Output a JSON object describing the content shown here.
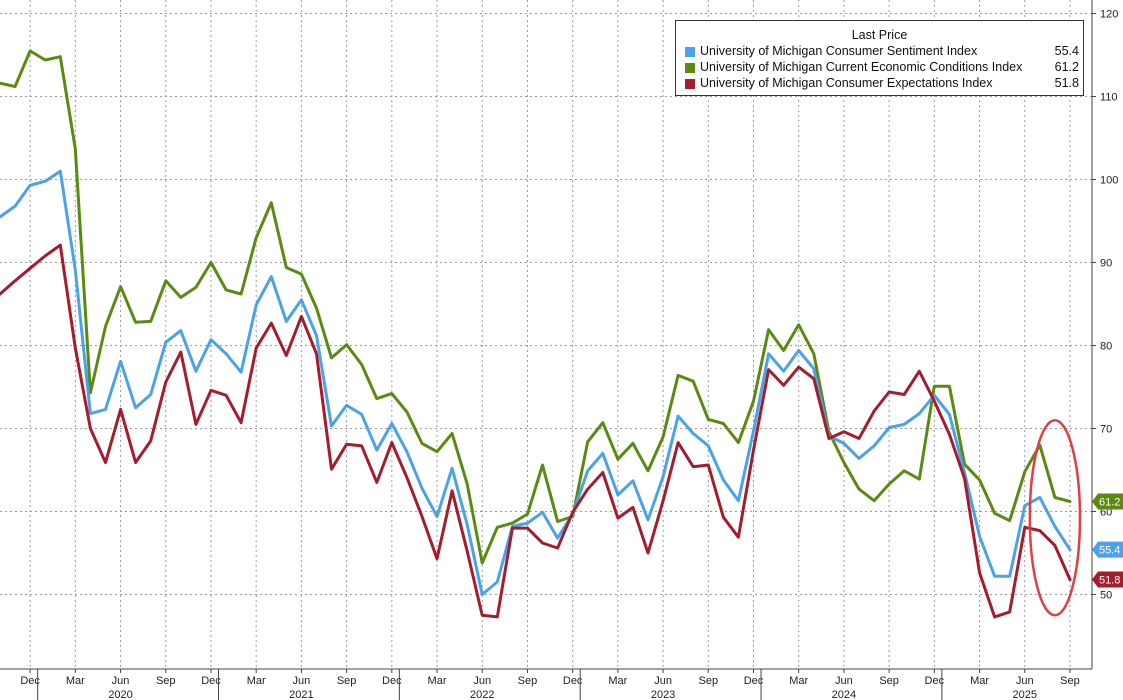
{
  "chart_data": {
    "type": "line",
    "title": "",
    "xlabel": "",
    "ylabel": "",
    "ylim": [
      42,
      121
    ],
    "y_ticks": [
      50,
      60,
      70,
      80,
      90,
      100,
      110,
      120
    ],
    "grid": true,
    "legend": {
      "title": "Last Price",
      "placement": "top-right"
    },
    "x_month_labels": [
      {
        "date": "2019-12",
        "label": "Dec"
      },
      {
        "date": "2020-03",
        "label": "Mar"
      },
      {
        "date": "2020-06",
        "label": "Jun"
      },
      {
        "date": "2020-09",
        "label": "Sep"
      },
      {
        "date": "2020-12",
        "label": "Dec"
      },
      {
        "date": "2021-03",
        "label": "Mar"
      },
      {
        "date": "2021-06",
        "label": "Jun"
      },
      {
        "date": "2021-09",
        "label": "Sep"
      },
      {
        "date": "2021-12",
        "label": "Dec"
      },
      {
        "date": "2022-03",
        "label": "Mar"
      },
      {
        "date": "2022-06",
        "label": "Jun"
      },
      {
        "date": "2022-09",
        "label": "Sep"
      },
      {
        "date": "2022-12",
        "label": "Dec"
      },
      {
        "date": "2023-03",
        "label": "Mar"
      },
      {
        "date": "2023-06",
        "label": "Jun"
      },
      {
        "date": "2023-09",
        "label": "Sep"
      },
      {
        "date": "2023-12",
        "label": "Dec"
      },
      {
        "date": "2024-03",
        "label": "Mar"
      },
      {
        "date": "2024-06",
        "label": "Jun"
      },
      {
        "date": "2024-09",
        "label": "Sep"
      },
      {
        "date": "2024-12",
        "label": "Dec"
      },
      {
        "date": "2025-03",
        "label": "Mar"
      },
      {
        "date": "2025-06",
        "label": "Jun"
      },
      {
        "date": "2025-09",
        "label": "Sep"
      }
    ],
    "x_year_labels": [
      {
        "date": "2020-06",
        "label": "2020"
      },
      {
        "date": "2021-06",
        "label": "2021"
      },
      {
        "date": "2022-06",
        "label": "2022"
      },
      {
        "date": "2023-06",
        "label": "2023"
      },
      {
        "date": "2024-06",
        "label": "2024"
      },
      {
        "date": "2025-06",
        "label": "2025"
      }
    ],
    "x": [
      "2019-10",
      "2019-11",
      "2019-12",
      "2020-01",
      "2020-02",
      "2020-03",
      "2020-04",
      "2020-05",
      "2020-06",
      "2020-07",
      "2020-08",
      "2020-09",
      "2020-10",
      "2020-11",
      "2020-12",
      "2021-01",
      "2021-02",
      "2021-03",
      "2021-04",
      "2021-05",
      "2021-06",
      "2021-07",
      "2021-08",
      "2021-09",
      "2021-10",
      "2021-11",
      "2021-12",
      "2022-01",
      "2022-02",
      "2022-03",
      "2022-04",
      "2022-05",
      "2022-06",
      "2022-07",
      "2022-08",
      "2022-09",
      "2022-10",
      "2022-11",
      "2022-12",
      "2023-01",
      "2023-02",
      "2023-03",
      "2023-04",
      "2023-05",
      "2023-06",
      "2023-07",
      "2023-08",
      "2023-09",
      "2023-10",
      "2023-11",
      "2023-12",
      "2024-01",
      "2024-02",
      "2024-03",
      "2024-04",
      "2024-05",
      "2024-06",
      "2024-07",
      "2024-08",
      "2024-09",
      "2024-10",
      "2024-11",
      "2024-12",
      "2025-01",
      "2025-02",
      "2025-03",
      "2025-04",
      "2025-05",
      "2025-06",
      "2025-07",
      "2025-08",
      "2025-09"
    ],
    "series": [
      {
        "name": "University of Michigan Consumer Sentiment Index",
        "last": "55.4",
        "end_tag": "55.4",
        "color": "#4aa3e8",
        "values": [
          95.5,
          96.8,
          99.3,
          99.8,
          101.0,
          89.1,
          71.8,
          72.3,
          78.1,
          72.5,
          74.1,
          80.4,
          81.8,
          76.9,
          80.7,
          79.0,
          76.8,
          84.9,
          88.3,
          82.9,
          85.5,
          81.2,
          70.3,
          72.8,
          71.7,
          67.4,
          70.6,
          67.2,
          62.8,
          59.4,
          65.2,
          58.4,
          50.0,
          51.5,
          58.2,
          58.6,
          59.9,
          56.8,
          59.7,
          64.9,
          67.0,
          62.0,
          63.7,
          59.0,
          64.2,
          71.5,
          69.4,
          67.9,
          63.8,
          61.3,
          69.7,
          79.0,
          76.9,
          79.4,
          77.2,
          69.1,
          68.2,
          66.4,
          67.9,
          70.1,
          70.5,
          71.8,
          74.0,
          71.7,
          64.7,
          57.0,
          52.2,
          52.2,
          60.7,
          61.7,
          58.2,
          55.4
        ]
      },
      {
        "name": "University of Michigan Current Economic Conditions Index",
        "last": "61.2",
        "end_tag": "61.2",
        "color": "#5b8a11",
        "values": [
          111.6,
          111.2,
          115.5,
          114.4,
          114.8,
          103.7,
          74.3,
          82.3,
          87.1,
          82.8,
          82.9,
          87.8,
          85.8,
          87.0,
          90.0,
          86.7,
          86.2,
          93.0,
          97.2,
          89.4,
          88.6,
          84.5,
          78.5,
          80.1,
          77.7,
          73.6,
          74.2,
          72.0,
          68.2,
          67.2,
          69.4,
          63.3,
          53.8,
          58.1,
          58.6,
          59.7,
          65.6,
          58.8,
          59.4,
          68.4,
          70.7,
          66.3,
          68.2,
          64.9,
          69.0,
          76.4,
          75.7,
          71.1,
          70.6,
          68.3,
          73.3,
          81.9,
          79.4,
          82.5,
          79.0,
          69.6,
          65.9,
          62.7,
          61.3,
          63.3,
          64.9,
          63.9,
          75.1,
          75.1,
          65.7,
          63.8,
          59.8,
          58.9,
          64.8,
          68.0,
          61.7,
          61.2
        ]
      },
      {
        "name": "University of Michigan Consumer Expectations Index",
        "last": "51.8",
        "end_tag": "51.8",
        "color": "#a51d2d",
        "values": [
          86.2,
          87.8,
          89.3,
          90.8,
          92.1,
          79.7,
          70.0,
          65.9,
          72.3,
          65.9,
          68.5,
          75.6,
          79.2,
          70.5,
          74.6,
          74.0,
          70.7,
          79.7,
          82.7,
          78.8,
          83.5,
          79.0,
          65.1,
          68.1,
          67.9,
          63.5,
          68.3,
          64.1,
          59.4,
          54.3,
          62.5,
          55.2,
          47.5,
          47.3,
          58.0,
          58.0,
          56.2,
          55.6,
          59.9,
          62.7,
          64.7,
          59.2,
          60.5,
          55.0,
          61.3,
          68.3,
          65.4,
          65.6,
          59.3,
          56.9,
          67.4,
          77.1,
          75.2,
          77.4,
          76.0,
          68.8,
          69.6,
          68.8,
          72.1,
          74.4,
          74.1,
          76.9,
          73.3,
          69.3,
          64.0,
          52.6,
          47.3,
          47.9,
          58.1,
          57.7,
          55.9,
          51.8
        ]
      }
    ],
    "annotation": {
      "type": "ellipse",
      "color": "#e04040",
      "from": "2025-07",
      "to": "2025-09",
      "ylim": [
        47.5,
        71.0
      ]
    }
  }
}
